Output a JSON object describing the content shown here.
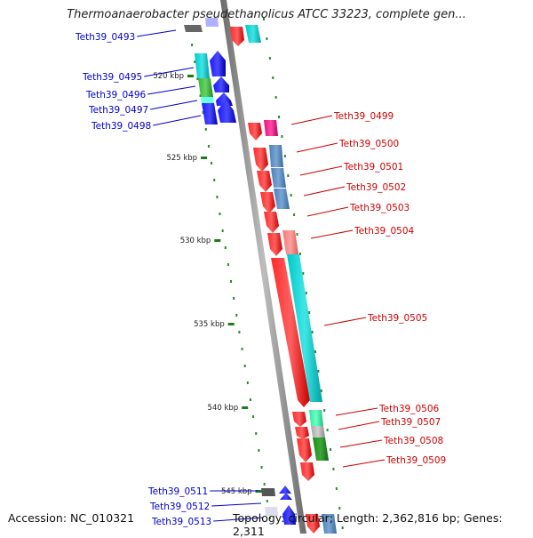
{
  "title": "Thermoanaerobacter pseudethanolicus ATCC 33223, complete gen...",
  "accession": "Accession: NC_010321",
  "topology": "Topology: circular; Length: 2,362,816 bp; Genes: 2,311",
  "scale_labels": [
    "520 kbp",
    "525 kbp",
    "530 kbp",
    "535 kbp",
    "540 kbp",
    "545 kbp"
  ],
  "genes_left": [
    {
      "name": "Teth39_0493",
      "color": "#0000cc"
    },
    {
      "name": "Teth39_0495",
      "color": "#0000cc"
    },
    {
      "name": "Teth39_0496",
      "color": "#0000cc"
    },
    {
      "name": "Teth39_0497",
      "color": "#0000cc"
    },
    {
      "name": "Teth39_0498",
      "color": "#0000cc"
    },
    {
      "name": "Teth39_0511",
      "color": "#0000cc"
    },
    {
      "name": "Teth39_0512",
      "color": "#0000cc"
    },
    {
      "name": "Teth39_0513",
      "color": "#0000cc"
    }
  ],
  "genes_right": [
    {
      "name": "Teth39_0499",
      "color": "#cc0000"
    },
    {
      "name": "Teth39_0500",
      "color": "#cc0000"
    },
    {
      "name": "Teth39_0501",
      "color": "#cc0000"
    },
    {
      "name": "Teth39_0502",
      "color": "#cc0000"
    },
    {
      "name": "Teth39_0503",
      "color": "#cc0000"
    },
    {
      "name": "Teth39_0504",
      "color": "#cc0000"
    },
    {
      "name": "Teth39_0505",
      "color": "#cc0000"
    },
    {
      "name": "Teth39_0506",
      "color": "#cc0000"
    },
    {
      "name": "Teth39_0507",
      "color": "#cc0000"
    },
    {
      "name": "Teth39_0508",
      "color": "#cc0000"
    },
    {
      "name": "Teth39_0509",
      "color": "#cc0000"
    }
  ]
}
